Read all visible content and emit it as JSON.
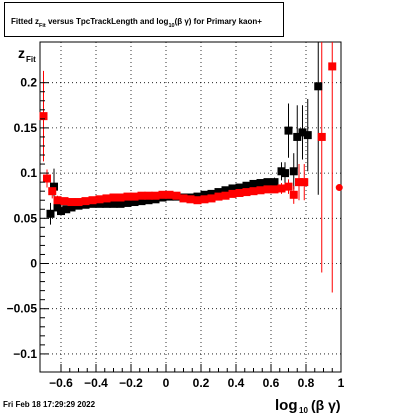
{
  "chart_data": {
    "type": "scatter",
    "title": "Fitted  z_{Fit}  versus TpcTrackLength and log_{10}(β γ) for Primary kaon+",
    "title_parts": {
      "lead": "Fitted  z",
      "lead_sub": "Fit",
      "middle": "  versus TpcTrackLength and log",
      "middle_sub": "10",
      "tail": "(β γ) for Primary kaon+"
    },
    "ylabel": "z",
    "ylabel_sub": "Fit",
    "xlabel": "log",
    "xlabel_sub": "10",
    "xlabel_tail": "(β γ)",
    "xlim": [
      -0.72,
      1.0
    ],
    "ylim": [
      -0.12,
      0.245
    ],
    "xticks": [
      -0.6,
      -0.4,
      -0.2,
      0,
      0.2,
      0.4,
      0.6,
      0.8,
      1
    ],
    "xtick_labels": [
      "−0.6",
      "−0.4",
      "−0.2",
      "0",
      "0.2",
      "0.4",
      "0.6",
      "0.8",
      "1"
    ],
    "yticks": [
      -0.1,
      -0.05,
      0,
      0.05,
      0.1,
      0.15,
      0.2
    ],
    "ytick_labels": [
      "−0.1",
      "−0.05",
      "0",
      "0.05",
      "0.1",
      "0.15",
      "0.2"
    ],
    "grid": true,
    "series": [
      {
        "color": "#000000",
        "marker": "square",
        "points": [
          {
            "x": -0.66,
            "y": 0.055,
            "err": 0.012
          },
          {
            "x": -0.64,
            "y": 0.085,
            "err": 0.02
          },
          {
            "x": -0.62,
            "y": 0.062,
            "err": 0.008
          },
          {
            "x": -0.6,
            "y": 0.058,
            "err": 0.005
          },
          {
            "x": -0.57,
            "y": 0.06,
            "err": 0.004
          },
          {
            "x": -0.54,
            "y": 0.062,
            "err": 0.003
          },
          {
            "x": -0.5,
            "y": 0.064,
            "err": 0.003
          },
          {
            "x": -0.46,
            "y": 0.065,
            "err": 0.002
          },
          {
            "x": -0.42,
            "y": 0.066,
            "err": 0.002
          },
          {
            "x": -0.38,
            "y": 0.066,
            "err": 0.002
          },
          {
            "x": -0.34,
            "y": 0.066,
            "err": 0.002
          },
          {
            "x": -0.3,
            "y": 0.066,
            "err": 0.002
          },
          {
            "x": -0.26,
            "y": 0.066,
            "err": 0.002
          },
          {
            "x": -0.22,
            "y": 0.067,
            "err": 0.002
          },
          {
            "x": -0.18,
            "y": 0.068,
            "err": 0.002
          },
          {
            "x": -0.14,
            "y": 0.069,
            "err": 0.002
          },
          {
            "x": -0.1,
            "y": 0.07,
            "err": 0.002
          },
          {
            "x": -0.06,
            "y": 0.071,
            "err": 0.002
          },
          {
            "x": -0.02,
            "y": 0.073,
            "err": 0.002
          },
          {
            "x": 0.02,
            "y": 0.074,
            "err": 0.002
          },
          {
            "x": 0.06,
            "y": 0.074,
            "err": 0.002
          },
          {
            "x": 0.1,
            "y": 0.073,
            "err": 0.002
          },
          {
            "x": 0.14,
            "y": 0.073,
            "err": 0.002
          },
          {
            "x": 0.18,
            "y": 0.074,
            "err": 0.002
          },
          {
            "x": 0.22,
            "y": 0.076,
            "err": 0.002
          },
          {
            "x": 0.26,
            "y": 0.077,
            "err": 0.002
          },
          {
            "x": 0.3,
            "y": 0.079,
            "err": 0.002
          },
          {
            "x": 0.34,
            "y": 0.081,
            "err": 0.002
          },
          {
            "x": 0.38,
            "y": 0.083,
            "err": 0.002
          },
          {
            "x": 0.42,
            "y": 0.084,
            "err": 0.002
          },
          {
            "x": 0.46,
            "y": 0.086,
            "err": 0.003
          },
          {
            "x": 0.5,
            "y": 0.088,
            "err": 0.003
          },
          {
            "x": 0.54,
            "y": 0.089,
            "err": 0.003
          },
          {
            "x": 0.58,
            "y": 0.09,
            "err": 0.004
          },
          {
            "x": 0.62,
            "y": 0.09,
            "err": 0.005
          },
          {
            "x": 0.66,
            "y": 0.102,
            "err": 0.01
          },
          {
            "x": 0.68,
            "y": 0.1,
            "err": 0.012
          },
          {
            "x": 0.7,
            "y": 0.147,
            "err": 0.03
          },
          {
            "x": 0.73,
            "y": 0.102,
            "err": 0.02
          },
          {
            "x": 0.75,
            "y": 0.14,
            "err": 0.035
          },
          {
            "x": 0.78,
            "y": 0.145,
            "err": 0.03
          },
          {
            "x": 0.81,
            "y": 0.142,
            "err": 0.04
          },
          {
            "x": 0.87,
            "y": 0.196,
            "err": 0.12
          }
        ]
      },
      {
        "color": "#ff0000",
        "marker": "square",
        "points": [
          {
            "x": -0.7,
            "y": 0.163,
            "err": 0.05
          },
          {
            "x": -0.68,
            "y": 0.094,
            "err": 0.01
          },
          {
            "x": -0.65,
            "y": 0.08,
            "err": 0.008
          },
          {
            "x": -0.62,
            "y": 0.07,
            "err": 0.005
          },
          {
            "x": -0.58,
            "y": 0.069,
            "err": 0.004
          },
          {
            "x": -0.54,
            "y": 0.068,
            "err": 0.003
          },
          {
            "x": -0.5,
            "y": 0.068,
            "err": 0.003
          },
          {
            "x": -0.46,
            "y": 0.069,
            "err": 0.002
          },
          {
            "x": -0.42,
            "y": 0.07,
            "err": 0.002
          },
          {
            "x": -0.38,
            "y": 0.071,
            "err": 0.002
          },
          {
            "x": -0.34,
            "y": 0.072,
            "err": 0.002
          },
          {
            "x": -0.3,
            "y": 0.073,
            "err": 0.002
          },
          {
            "x": -0.26,
            "y": 0.073,
            "err": 0.002
          },
          {
            "x": -0.22,
            "y": 0.074,
            "err": 0.002
          },
          {
            "x": -0.18,
            "y": 0.074,
            "err": 0.002
          },
          {
            "x": -0.14,
            "y": 0.075,
            "err": 0.002
          },
          {
            "x": -0.1,
            "y": 0.075,
            "err": 0.002
          },
          {
            "x": -0.06,
            "y": 0.075,
            "err": 0.002
          },
          {
            "x": -0.02,
            "y": 0.076,
            "err": 0.002
          },
          {
            "x": 0.02,
            "y": 0.076,
            "err": 0.002
          },
          {
            "x": 0.06,
            "y": 0.075,
            "err": 0.002
          },
          {
            "x": 0.1,
            "y": 0.072,
            "err": 0.002
          },
          {
            "x": 0.14,
            "y": 0.071,
            "err": 0.002
          },
          {
            "x": 0.18,
            "y": 0.07,
            "err": 0.002
          },
          {
            "x": 0.22,
            "y": 0.071,
            "err": 0.002
          },
          {
            "x": 0.26,
            "y": 0.072,
            "err": 0.002
          },
          {
            "x": 0.3,
            "y": 0.074,
            "err": 0.002
          },
          {
            "x": 0.34,
            "y": 0.075,
            "err": 0.002
          },
          {
            "x": 0.38,
            "y": 0.077,
            "err": 0.002
          },
          {
            "x": 0.42,
            "y": 0.078,
            "err": 0.002
          },
          {
            "x": 0.46,
            "y": 0.079,
            "err": 0.002
          },
          {
            "x": 0.5,
            "y": 0.08,
            "err": 0.003
          },
          {
            "x": 0.54,
            "y": 0.081,
            "err": 0.003
          },
          {
            "x": 0.58,
            "y": 0.082,
            "err": 0.003
          },
          {
            "x": 0.62,
            "y": 0.082,
            "err": 0.004
          },
          {
            "x": 0.66,
            "y": 0.083,
            "err": 0.006
          },
          {
            "x": 0.7,
            "y": 0.085,
            "err": 0.008
          },
          {
            "x": 0.73,
            "y": 0.076,
            "err": 0.01
          },
          {
            "x": 0.76,
            "y": 0.09,
            "err": 0.02
          },
          {
            "x": 0.79,
            "y": 0.09,
            "err": 0.02
          },
          {
            "x": 0.89,
            "y": 0.14,
            "err": 0.15
          },
          {
            "x": 0.95,
            "y": 0.218,
            "err": 0.25
          },
          {
            "x": 0.99,
            "y": 0.084,
            "err": 0.0,
            "marker": "circle"
          }
        ]
      }
    ]
  },
  "footer": {
    "timestamp": "Fri Feb 18 17:29:29 2022"
  }
}
